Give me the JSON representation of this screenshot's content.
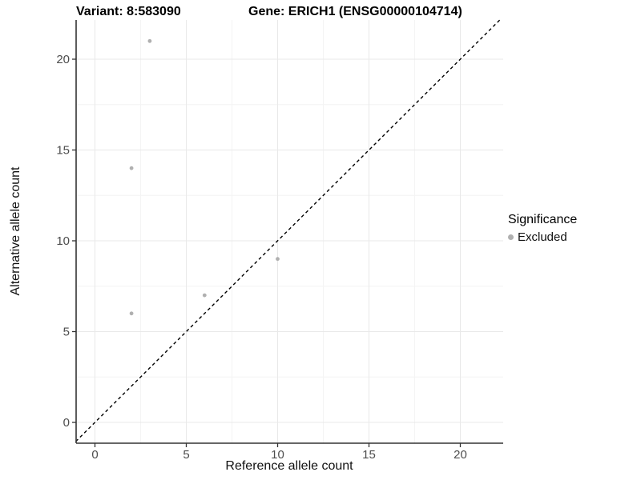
{
  "figure": {
    "background": "#ffffff"
  },
  "chart_data": {
    "type": "scatter",
    "title_left": "Variant: 8:583090",
    "title_right": "Gene: ERICH1 (ENSG00000104714)",
    "xlabel": "Reference allele count",
    "ylabel": "Alternative allele count",
    "xticks": [
      0,
      5,
      10,
      15,
      20
    ],
    "yticks": [
      0,
      5,
      10,
      15,
      20
    ],
    "xticks_minor": [
      2.5,
      7.5,
      12.5,
      17.5
    ],
    "yticks_minor": [
      2.5,
      7.5,
      12.5,
      17.5
    ],
    "xlim": [
      -1.05,
      22.35
    ],
    "ylim": [
      -1.25,
      22.2
    ],
    "grid": true,
    "series": [
      {
        "name": "Excluded",
        "color": "#b0b0b0",
        "points": [
          [
            2,
            6
          ],
          [
            2,
            14
          ],
          [
            3,
            21
          ],
          [
            6,
            7
          ],
          [
            10,
            9
          ]
        ]
      }
    ],
    "reference_line": {
      "type": "identity",
      "style": "dashed",
      "color": "#000000"
    },
    "legend": {
      "title": "Significance",
      "position": "right",
      "entries": [
        {
          "label": "Excluded",
          "color": "#b0b0b0"
        }
      ]
    },
    "colors": {
      "grid_major": "#e9e9e9",
      "grid_minor": "#f4f4f4",
      "axis_line": "#333333",
      "tick_label": "#4d4d4d",
      "point": "#b0b0b0"
    }
  }
}
